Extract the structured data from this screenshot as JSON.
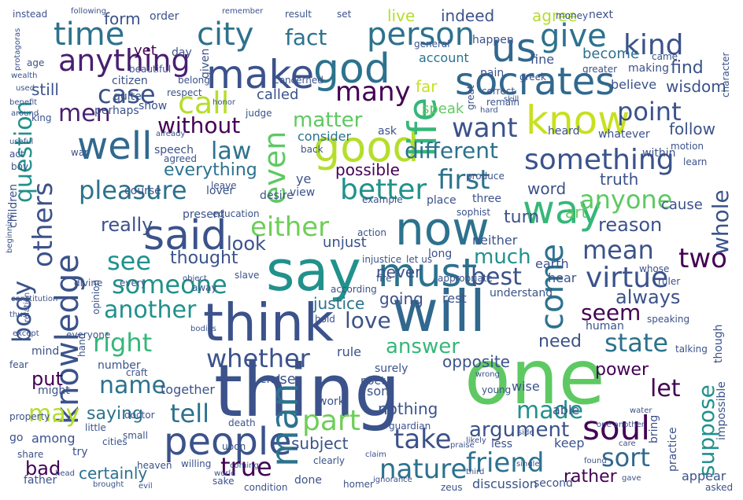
{
  "words": [
    {
      "text": "thing",
      "color": "#3b528b"
    },
    {
      "text": "one",
      "color": "#5ec962"
    },
    {
      "text": "say",
      "color": "#21918c"
    },
    {
      "text": "will",
      "color": "#31688e"
    },
    {
      "text": "think",
      "color": "#3b528b"
    },
    {
      "text": "now",
      "color": "#2c728e"
    },
    {
      "text": "good",
      "color": "#b5de2b"
    },
    {
      "text": "said",
      "color": "#3b528b"
    },
    {
      "text": "know",
      "color": "#c8e020"
    },
    {
      "text": "socrates",
      "color": "#31688e"
    },
    {
      "text": "people",
      "color": "#3b528b"
    },
    {
      "text": "make",
      "color": "#3b528b"
    },
    {
      "text": "god",
      "color": "#2c728e"
    },
    {
      "text": "must",
      "color": "#2c728e"
    },
    {
      "text": "well",
      "color": "#31688e"
    },
    {
      "text": "way",
      "color": "#35b779"
    },
    {
      "text": "us",
      "color": "#31688e"
    },
    {
      "text": "knowledge",
      "color": "#3b528b"
    },
    {
      "text": "man",
      "color": "#2c728e"
    },
    {
      "text": "life",
      "color": "#35b779"
    },
    {
      "text": "anything",
      "color": "#481f70"
    },
    {
      "text": "something",
      "color": "#3b528b"
    },
    {
      "text": "person",
      "color": "#2c728e"
    },
    {
      "text": "city",
      "color": "#2c728e"
    },
    {
      "text": "time",
      "color": "#2c728e"
    },
    {
      "text": "give",
      "color": "#2c728e"
    },
    {
      "text": "kind",
      "color": "#3b528b"
    },
    {
      "text": "soul",
      "color": "#440154"
    },
    {
      "text": "come",
      "color": "#2c728e"
    },
    {
      "text": "even",
      "color": "#5ec962"
    },
    {
      "text": "call",
      "color": "#b5de2b"
    },
    {
      "text": "either",
      "color": "#6ece58"
    },
    {
      "text": "better",
      "color": "#21918c"
    },
    {
      "text": "pleasure",
      "color": "#2c728e"
    },
    {
      "text": "first",
      "color": "#2c728e"
    },
    {
      "text": "virtue",
      "color": "#3b528b"
    },
    {
      "text": "body",
      "color": "#3b528b"
    },
    {
      "text": "others",
      "color": "#3b528b"
    },
    {
      "text": "many",
      "color": "#440154"
    },
    {
      "text": "case",
      "color": "#3b528b"
    },
    {
      "text": "men",
      "color": "#481f70"
    },
    {
      "text": "want",
      "color": "#3b528b"
    },
    {
      "text": "point",
      "color": "#3b528b"
    },
    {
      "text": "anyone",
      "color": "#5ec962"
    },
    {
      "text": "mean",
      "color": "#3b528b"
    },
    {
      "text": "two",
      "color": "#440154"
    },
    {
      "text": "another",
      "color": "#21918c"
    },
    {
      "text": "right",
      "color": "#35b779"
    },
    {
      "text": "see",
      "color": "#21918c"
    },
    {
      "text": "someone",
      "color": "#21918c"
    },
    {
      "text": "whether",
      "color": "#3b528b"
    },
    {
      "text": "nature",
      "color": "#2c728e"
    },
    {
      "text": "friend",
      "color": "#2c728e"
    },
    {
      "text": "true",
      "color": "#440154"
    },
    {
      "text": "part",
      "color": "#6ece58"
    },
    {
      "text": "take",
      "color": "#3b528b"
    },
    {
      "text": "tell",
      "color": "#2c728e"
    },
    {
      "text": "name",
      "color": "#2c728e"
    },
    {
      "text": "may",
      "color": "#b5de2b"
    },
    {
      "text": "sort",
      "color": "#31688e"
    },
    {
      "text": "state",
      "color": "#2c728e"
    },
    {
      "text": "seem",
      "color": "#440154"
    },
    {
      "text": "let",
      "color": "#440154"
    },
    {
      "text": "love",
      "color": "#3b528b"
    },
    {
      "text": "law",
      "color": "#2c728e"
    },
    {
      "text": "different",
      "color": "#2c728e"
    },
    {
      "text": "without",
      "color": "#440154"
    },
    {
      "text": "matter",
      "color": "#5ec962"
    },
    {
      "text": "fact",
      "color": "#2c728e"
    },
    {
      "text": "made",
      "color": "#21918c"
    },
    {
      "text": "argument",
      "color": "#3b528b"
    },
    {
      "text": "answer",
      "color": "#35b779"
    },
    {
      "text": "best",
      "color": "#3b528b"
    },
    {
      "text": "much",
      "color": "#21918c"
    },
    {
      "text": "question",
      "color": "#21918c"
    },
    {
      "text": "suppose",
      "color": "#21918c"
    },
    {
      "text": "whole",
      "color": "#3b528b"
    },
    {
      "text": "reason",
      "color": "#3b528b"
    },
    {
      "text": "always",
      "color": "#3b528b"
    },
    {
      "text": "look",
      "color": "#3b528b"
    },
    {
      "text": "thought",
      "color": "#3b528b"
    },
    {
      "text": "really",
      "color": "#3b528b"
    },
    {
      "text": "everything",
      "color": "#2c728e"
    },
    {
      "text": "possible",
      "color": "#440154"
    },
    {
      "text": "word",
      "color": "#3b528b"
    },
    {
      "text": "truth",
      "color": "#3b528b"
    },
    {
      "text": "turn",
      "color": "#3b528b"
    },
    {
      "text": "rather",
      "color": "#440154"
    },
    {
      "text": "certainly",
      "color": "#2c728e"
    },
    {
      "text": "subject",
      "color": "#3b528b"
    },
    {
      "text": "saying",
      "color": "#2c728e"
    },
    {
      "text": "bad",
      "color": "#440154"
    },
    {
      "text": "put",
      "color": "#440154"
    },
    {
      "text": "nothing",
      "color": "#3b528b"
    },
    {
      "text": "opposite",
      "color": "#3b528b"
    },
    {
      "text": "need",
      "color": "#3b528b"
    },
    {
      "text": "power",
      "color": "#440154"
    },
    {
      "text": "justice",
      "color": "#2c728e"
    },
    {
      "text": "going",
      "color": "#3b528b"
    },
    {
      "text": "never",
      "color": "#3b528b"
    },
    {
      "text": "still",
      "color": "#3b528b"
    },
    {
      "text": "find",
      "color": "#3b528b"
    },
    {
      "text": "follow",
      "color": "#3b528b"
    },
    {
      "text": "wisdom",
      "color": "#3b528b"
    },
    {
      "text": "become",
      "color": "#2c728e"
    },
    {
      "text": "agree",
      "color": "#b5de2b"
    },
    {
      "text": "live",
      "color": "#b5de2b"
    },
    {
      "text": "indeed",
      "color": "#3b528b"
    },
    {
      "text": "form",
      "color": "#3b528b"
    },
    {
      "text": "yet",
      "color": "#440154"
    },
    {
      "text": "far",
      "color": "#c8e020"
    },
    {
      "text": "account",
      "color": "#2c728e"
    },
    {
      "text": "believe",
      "color": "#3b528b"
    },
    {
      "text": "called",
      "color": "#3b528b"
    },
    {
      "text": "speak",
      "color": "#5ec962"
    },
    {
      "text": "consider",
      "color": "#2c728e"
    },
    {
      "text": "art",
      "color": "#5ec962"
    },
    {
      "text": "cause",
      "color": "#3b528b"
    },
    {
      "text": "able",
      "color": "#3b528b"
    },
    {
      "text": "keep",
      "color": "#3b528b"
    },
    {
      "text": "hear",
      "color": "#3b528b"
    },
    {
      "text": "earth",
      "color": "#3b528b"
    },
    {
      "text": "neither",
      "color": "#3b528b"
    },
    {
      "text": "unjust",
      "color": "#3b528b"
    },
    {
      "text": "together",
      "color": "#3b528b"
    },
    {
      "text": "among",
      "color": "#3b528b"
    },
    {
      "text": "appear",
      "color": "#3b528b"
    },
    {
      "text": "discussion",
      "color": "#3b528b"
    },
    {
      "text": "son",
      "color": "#3b528b"
    },
    {
      "text": "use",
      "color": "#3b528b"
    },
    {
      "text": "end",
      "color": "#3b528b"
    },
    {
      "text": "rest",
      "color": "#3b528b"
    },
    {
      "text": "surely",
      "color": "#3b528b"
    },
    {
      "text": "understand",
      "color": "#3b528b"
    },
    {
      "text": "course",
      "color": "#3b528b"
    },
    {
      "text": "speech",
      "color": "#3b528b"
    },
    {
      "text": "lover",
      "color": "#3b528b"
    },
    {
      "text": "present",
      "color": "#3b528b"
    },
    {
      "text": "desire",
      "color": "#3b528b"
    },
    {
      "text": "place",
      "color": "#3b528b"
    },
    {
      "text": "three",
      "color": "#3b528b"
    },
    {
      "text": "wise",
      "color": "#3b528b"
    },
    {
      "text": "human",
      "color": "#3b528b"
    },
    {
      "text": "father",
      "color": "#3b528b"
    },
    {
      "text": "done",
      "color": "#3b528b"
    },
    {
      "text": "second",
      "color": "#3b528b"
    },
    {
      "text": "less",
      "color": "#3b528b"
    },
    {
      "text": "work",
      "color": "#3b528b"
    },
    {
      "text": "try",
      "color": "#3b528b"
    },
    {
      "text": "go",
      "color": "#3b528b"
    },
    {
      "text": "share",
      "color": "#3b528b"
    },
    {
      "text": "might",
      "color": "#3b528b"
    },
    {
      "text": "number",
      "color": "#3b528b"
    },
    {
      "text": "mind",
      "color": "#3b528b"
    },
    {
      "text": "everyone",
      "color": "#3b528b"
    },
    {
      "text": "children",
      "color": "#3b528b"
    },
    {
      "text": "citizen",
      "color": "#3b528b"
    },
    {
      "text": "perhaps",
      "color": "#3b528b"
    },
    {
      "text": "quite",
      "color": "#3b528b"
    },
    {
      "text": "show",
      "color": "#3b528b"
    },
    {
      "text": "given",
      "color": "#3b528b"
    },
    {
      "text": "day",
      "color": "#3b528b"
    },
    {
      "text": "order",
      "color": "#3b528b"
    },
    {
      "text": "beautiful",
      "color": "#3b528b"
    },
    {
      "text": "belong",
      "color": "#3b528b"
    },
    {
      "text": "respect",
      "color": "#3b528b"
    },
    {
      "text": "pain",
      "color": "#3b528b"
    },
    {
      "text": "fine",
      "color": "#3b528b"
    },
    {
      "text": "greek",
      "color": "#3b528b"
    },
    {
      "text": "making",
      "color": "#3b528b"
    },
    {
      "text": "next",
      "color": "#3b528b"
    },
    {
      "text": "set",
      "color": "#3b528b"
    },
    {
      "text": "result",
      "color": "#3b528b"
    },
    {
      "text": "happen",
      "color": "#3b528b"
    },
    {
      "text": "general",
      "color": "#3b528b"
    },
    {
      "text": "money",
      "color": "#3b528b"
    },
    {
      "text": "instead",
      "color": "#3b528b"
    },
    {
      "text": "following",
      "color": "#3b528b"
    },
    {
      "text": "remember",
      "color": "#3b528b"
    },
    {
      "text": "age",
      "color": "#3b528b"
    },
    {
      "text": "within",
      "color": "#3b528b"
    },
    {
      "text": "whatever",
      "color": "#3b528b"
    },
    {
      "text": "motion",
      "color": "#3b528b"
    },
    {
      "text": "learn",
      "color": "#3b528b"
    },
    {
      "text": "heard",
      "color": "#3b528b"
    },
    {
      "text": "ask",
      "color": "#3b528b"
    },
    {
      "text": "judge",
      "color": "#3b528b"
    },
    {
      "text": "concerned",
      "color": "#3b528b"
    },
    {
      "text": "fire",
      "color": "#3b528b"
    },
    {
      "text": "slave",
      "color": "#3b528b"
    },
    {
      "text": "leave",
      "color": "#3b528b"
    },
    {
      "text": "education",
      "color": "#3b528b"
    },
    {
      "text": "view",
      "color": "#3b528b"
    },
    {
      "text": "ye",
      "color": "#3b528b"
    },
    {
      "text": "long",
      "color": "#3b528b"
    },
    {
      "text": "let us",
      "color": "#3b528b"
    },
    {
      "text": "injustice",
      "color": "#3b528b"
    },
    {
      "text": "action",
      "color": "#3b528b"
    },
    {
      "text": "hold",
      "color": "#3b528b"
    },
    {
      "text": "rule",
      "color": "#3b528b"
    },
    {
      "text": "poet",
      "color": "#3b528b"
    },
    {
      "text": "craft",
      "color": "#3b528b"
    },
    {
      "text": "doctor",
      "color": "#3b528b"
    },
    {
      "text": "death",
      "color": "#3b528b"
    },
    {
      "text": "guardian",
      "color": "#3b528b"
    },
    {
      "text": "bring",
      "color": "#3b528b"
    },
    {
      "text": "practice",
      "color": "#3b528b"
    },
    {
      "text": "impossible",
      "color": "#3b528b"
    },
    {
      "text": "talking",
      "color": "#3b528b"
    },
    {
      "text": "though",
      "color": "#3b528b"
    },
    {
      "text": "asked",
      "color": "#3b528b"
    },
    {
      "text": "zeus",
      "color": "#3b528b"
    },
    {
      "text": "homer",
      "color": "#3b528b"
    },
    {
      "text": "king",
      "color": "#3b528b"
    },
    {
      "text": "war",
      "color": "#3b528b"
    },
    {
      "text": "act",
      "color": "#3b528b"
    },
    {
      "text": "boy",
      "color": "#3b528b"
    },
    {
      "text": "fear",
      "color": "#3b528b"
    },
    {
      "text": "property",
      "color": "#3b528b"
    },
    {
      "text": "ruler",
      "color": "#3b528b"
    },
    {
      "text": "whose",
      "color": "#3b528b"
    },
    {
      "text": "speaking",
      "color": "#3b528b"
    },
    {
      "text": "character",
      "color": "#3b528b"
    },
    {
      "text": "greater",
      "color": "#3b528b"
    },
    {
      "text": "came",
      "color": "#3b528b"
    },
    {
      "text": "appropriate",
      "color": "#3b528b"
    },
    {
      "text": "according",
      "color": "#3b528b"
    },
    {
      "text": "away",
      "color": "#3b528b"
    },
    {
      "text": "divine",
      "color": "#3b528b"
    },
    {
      "text": "every",
      "color": "#3b528b"
    },
    {
      "text": "opinion",
      "color": "#3b528b"
    },
    {
      "text": "hand",
      "color": "#3b528b"
    },
    {
      "text": "agreed",
      "color": "#3b528b"
    },
    {
      "text": "already",
      "color": "#3b528b"
    },
    {
      "text": "back",
      "color": "#3b528b"
    },
    {
      "text": "produce",
      "color": "#3b528b"
    },
    {
      "text": "example",
      "color": "#3b528b"
    },
    {
      "text": "sophist",
      "color": "#3b528b"
    },
    {
      "text": "young",
      "color": "#3b528b"
    },
    {
      "text": "clearly",
      "color": "#3b528b"
    },
    {
      "text": "little",
      "color": "#3b528b"
    },
    {
      "text": "small",
      "color": "#3b528b"
    },
    {
      "text": "cities",
      "color": "#3b528b"
    },
    {
      "text": "upon",
      "color": "#3b528b"
    },
    {
      "text": "willing",
      "color": "#3b528b"
    },
    {
      "text": "heaven",
      "color": "#3b528b"
    },
    {
      "text": "sake",
      "color": "#3b528b"
    },
    {
      "text": "condition",
      "color": "#3b528b"
    },
    {
      "text": "claim",
      "color": "#3b528b"
    },
    {
      "text": "third",
      "color": "#3b528b"
    },
    {
      "text": "praise",
      "color": "#3b528b"
    },
    {
      "text": "found",
      "color": "#3b528b"
    },
    {
      "text": "gave",
      "color": "#3b528b"
    },
    {
      "text": "care",
      "color": "#3b528b"
    },
    {
      "text": "single",
      "color": "#3b528b"
    },
    {
      "text": "side",
      "color": "#3b528b"
    },
    {
      "text": "likely",
      "color": "#3b528b"
    },
    {
      "text": "water",
      "color": "#3b528b"
    },
    {
      "text": "wrong",
      "color": "#3b528b"
    },
    {
      "text": "beginning",
      "color": "#3b528b"
    },
    {
      "text": "constitution",
      "color": "#3b528b"
    },
    {
      "text": "great",
      "color": "#3b528b"
    },
    {
      "text": "correct",
      "color": "#3b528b"
    },
    {
      "text": "remain",
      "color": "#3b528b"
    },
    {
      "text": "hard",
      "color": "#3b528b"
    },
    {
      "text": "wealth",
      "color": "#3b528b"
    },
    {
      "text": "benefit",
      "color": "#3b528b"
    },
    {
      "text": "around",
      "color": "#3b528b"
    },
    {
      "text": "useful",
      "color": "#3b528b"
    },
    {
      "text": "honor",
      "color": "#3b528b"
    },
    {
      "text": "skill",
      "color": "#3b528b"
    },
    {
      "text": "bodies",
      "color": "#3b528b"
    },
    {
      "text": "one another",
      "color": "#3b528b"
    },
    {
      "text": "ignorance",
      "color": "#3b528b"
    },
    {
      "text": "brought",
      "color": "#3b528b"
    },
    {
      "text": "evil",
      "color": "#3b528b"
    },
    {
      "text": "coming",
      "color": "#3b528b"
    },
    {
      "text": "world",
      "color": "#3b528b"
    },
    {
      "text": "head",
      "color": "#3b528b"
    },
    {
      "text": "object",
      "color": "#3b528b"
    },
    {
      "text": "protagoras",
      "color": "#3b528b"
    },
    {
      "text": "used",
      "color": "#3b528b"
    },
    {
      "text": "relation",
      "color": "#3b528b"
    },
    {
      "text": "thus",
      "color": "#3b528b"
    },
    {
      "text": "except",
      "color": "#3b528b"
    }
  ]
}
